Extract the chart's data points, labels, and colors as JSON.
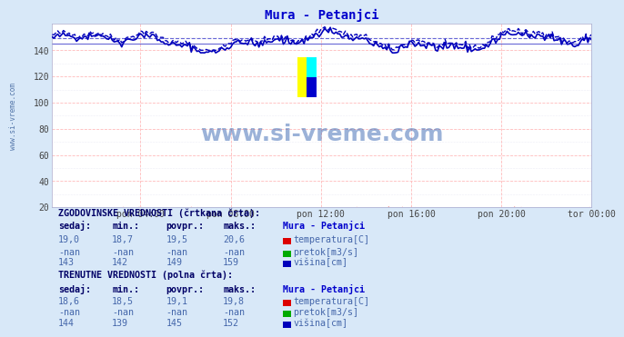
{
  "title": "Mura - Petanjci",
  "title_color": "#0000cc",
  "bg_color": "#d8e8f8",
  "plot_bg_color": "#ffffff",
  "x_labels": [
    "pon 04:00",
    "pon 08:00",
    "pon 12:00",
    "pon 16:00",
    "pon 20:00",
    "tor 00:00"
  ],
  "x_ticks_frac": [
    0.167,
    0.333,
    0.5,
    0.667,
    0.833,
    1.0
  ],
  "n_points": 288,
  "ylim": [
    20,
    160
  ],
  "yticks": [
    20,
    40,
    60,
    80,
    100,
    120,
    140
  ],
  "visina_avg_hist": 149,
  "visina_avg_curr": 145,
  "watermark": "www.si-vreme.com",
  "watermark_color": "#2255aa",
  "sidebar_text": "www.si-vreme.com",
  "sidebar_color": "#5577aa",
  "hist_section": "ZGODOVINSKE VREDNOSTI (črtkana črta):",
  "curr_section": "TRENUTNE VREDNOSTI (polna črta):",
  "col_headers": [
    "sedaj:",
    "min.:",
    "povpr.:",
    "maks.:",
    "Mura - Petanjci"
  ],
  "hist_temp": [
    "19,0",
    "18,7",
    "19,5",
    "20,6"
  ],
  "hist_pretok": [
    "-nan",
    "-nan",
    "-nan",
    "-nan"
  ],
  "hist_visina": [
    "143",
    "142",
    "149",
    "159"
  ],
  "curr_temp": [
    "18,6",
    "18,5",
    "19,1",
    "19,8"
  ],
  "curr_pretok": [
    "-nan",
    "-nan",
    "-nan",
    "-nan"
  ],
  "curr_visina": [
    "144",
    "139",
    "145",
    "152"
  ],
  "label_temp": "temperatura[C]",
  "label_pretok": "pretok[m3/s]",
  "label_visina": "višina[cm]",
  "color_temp": "#dd0000",
  "color_pretok": "#00aa00",
  "color_visina": "#0000bb"
}
